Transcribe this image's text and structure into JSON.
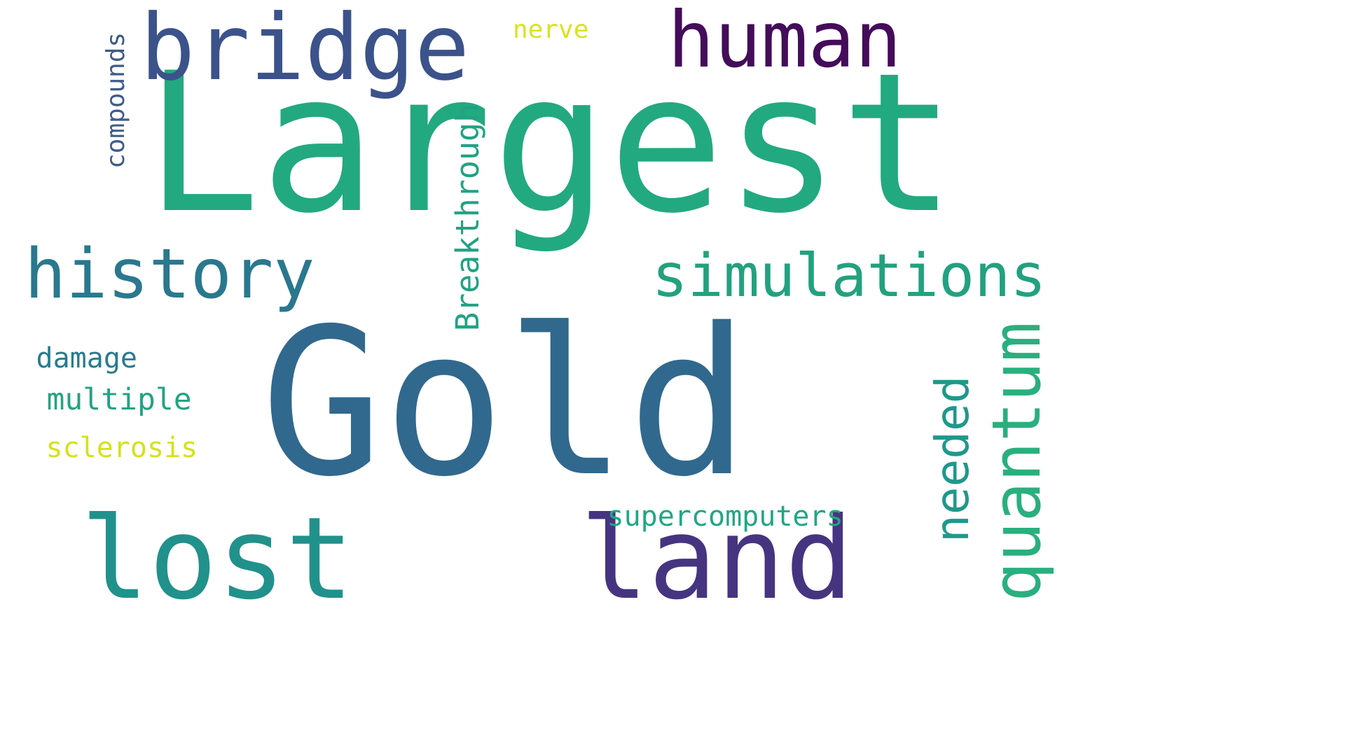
{
  "words": [
    {
      "text": "Largest",
      "color": "#23a97f",
      "orientation": "horizontal"
    },
    {
      "text": "Gold",
      "color": "#31688e",
      "orientation": "horizontal"
    },
    {
      "text": "bridge",
      "color": "#3b528b",
      "orientation": "horizontal"
    },
    {
      "text": "human",
      "color": "#440c5a",
      "orientation": "horizontal"
    },
    {
      "text": "nerve",
      "color": "#d9e31f",
      "orientation": "horizontal"
    },
    {
      "text": "compounds",
      "color": "#3e5b8a",
      "orientation": "vertical"
    },
    {
      "text": "history",
      "color": "#2a788e",
      "orientation": "horizontal"
    },
    {
      "text": "simulations",
      "color": "#23a17f",
      "orientation": "horizontal"
    },
    {
      "text": "Breakthrough",
      "color": "#22a283",
      "orientation": "vertical"
    },
    {
      "text": "damage",
      "color": "#297b8e",
      "orientation": "horizontal"
    },
    {
      "text": "multiple",
      "color": "#23a383",
      "orientation": "horizontal"
    },
    {
      "text": "sclerosis",
      "color": "#d4e21a",
      "orientation": "horizontal"
    },
    {
      "text": "needed",
      "color": "#1f988b",
      "orientation": "vertical"
    },
    {
      "text": "quantum",
      "color": "#2aaf7f",
      "orientation": "vertical"
    },
    {
      "text": "lost",
      "color": "#21918c",
      "orientation": "horizontal"
    },
    {
      "text": "land",
      "color": "#463480",
      "orientation": "horizontal"
    },
    {
      "text": "supercomputers",
      "color": "#21a685",
      "orientation": "horizontal"
    }
  ]
}
